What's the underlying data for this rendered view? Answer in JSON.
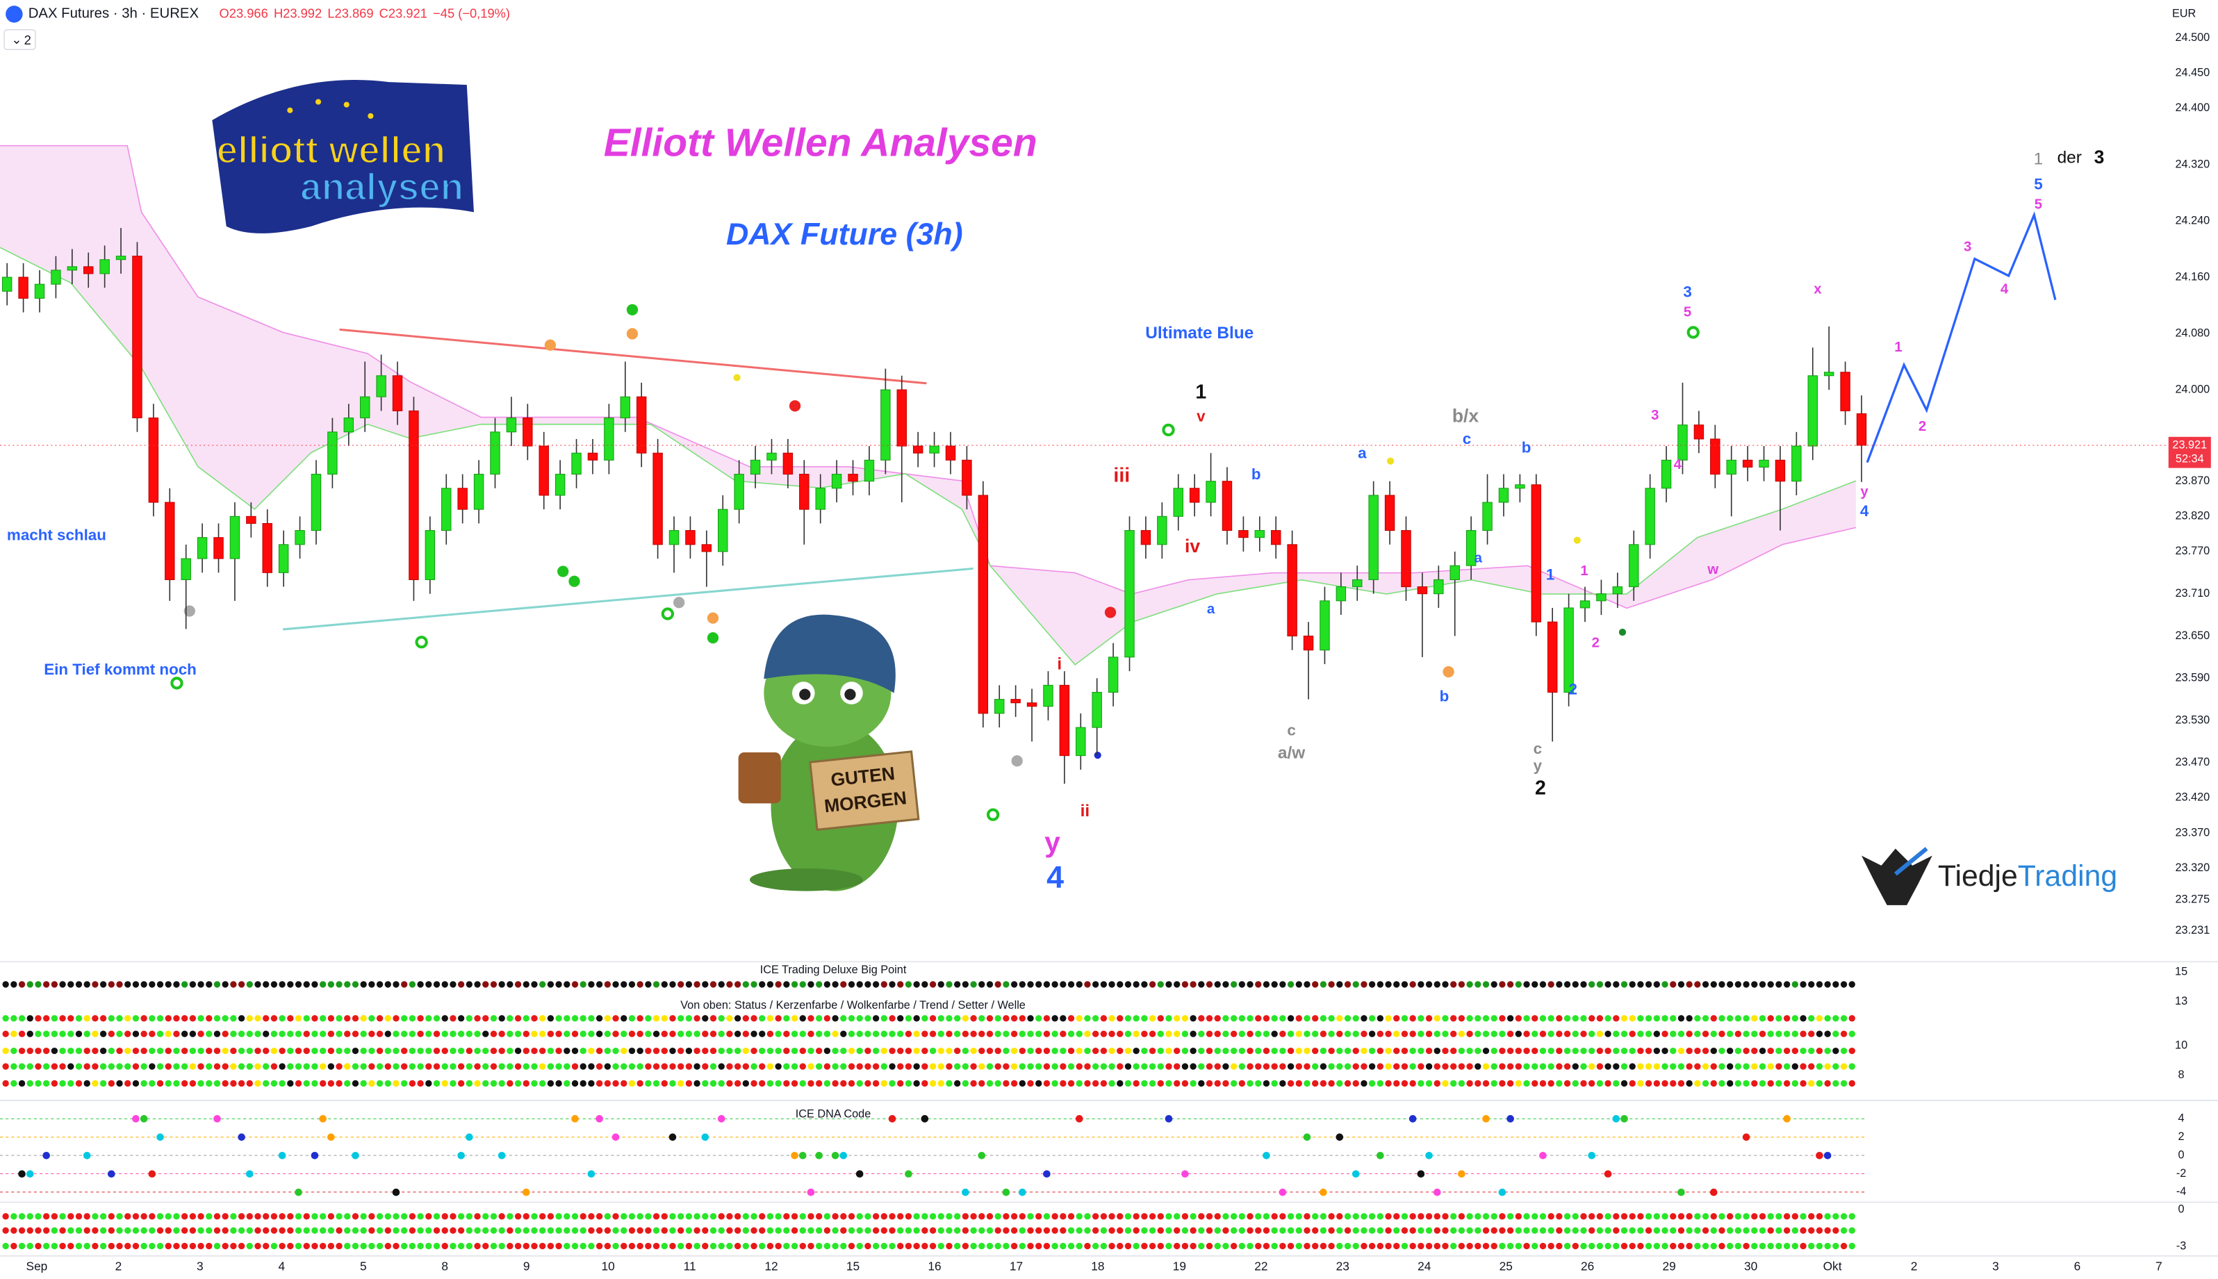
{
  "header": {
    "symbol": "DAX Futures · 3h · EUREX",
    "ohlc_text": [
      "O23.966",
      "H23.992",
      "L23.869",
      "C23.921",
      "−45 (−0,19%)"
    ],
    "layers": "2"
  },
  "chart_data": {
    "type": "candlestick",
    "currency": "EUR",
    "price_tag": "23.921",
    "countdown": "52:34",
    "up_color": "#22e022",
    "down_color": "#ff0a0a",
    "grid": false,
    "ylim": [
      23191,
      24554
    ],
    "yticks": [
      {
        "value": 24500,
        "label": "24.500"
      },
      {
        "value": 24450,
        "label": "24.450"
      },
      {
        "value": 24400,
        "label": "24.400"
      },
      {
        "value": 24320,
        "label": "24.320"
      },
      {
        "value": 24240,
        "label": "24.240"
      },
      {
        "value": 24160,
        "label": "24.160"
      },
      {
        "value": 24080,
        "label": "24.080"
      },
      {
        "value": 24000,
        "label": "24.000"
      },
      {
        "value": 23870,
        "label": "23.870"
      },
      {
        "value": 23820,
        "label": "23.820"
      },
      {
        "value": 23770,
        "label": "23.770"
      },
      {
        "value": 23710,
        "label": "23.710"
      },
      {
        "value": 23650,
        "label": "23.650"
      },
      {
        "value": 23590,
        "label": "23.590"
      },
      {
        "value": 23530,
        "label": "23.530"
      },
      {
        "value": 23470,
        "label": "23.470"
      },
      {
        "value": 23420,
        "label": "23.420"
      },
      {
        "value": 23370,
        "label": "23.370"
      },
      {
        "value": 23320,
        "label": "23.320"
      },
      {
        "value": 23275,
        "label": "23.275"
      },
      {
        "value": 23231,
        "label": "23.231"
      }
    ],
    "x_labels": [
      "Sep",
      "2",
      "3",
      "4",
      "5",
      "8",
      "9",
      "10",
      "11",
      "12",
      "15",
      "16",
      "17",
      "18",
      "19",
      "22",
      "23",
      "24",
      "25",
      "26",
      "29",
      "30",
      "Okt",
      "2",
      "3",
      "6",
      "7"
    ],
    "ohlc": [
      [
        24140,
        24180,
        24120,
        24160
      ],
      [
        24160,
        24180,
        24110,
        24130
      ],
      [
        24130,
        24170,
        24110,
        24150
      ],
      [
        24150,
        24190,
        24130,
        24170
      ],
      [
        24170,
        24200,
        24150,
        24175
      ],
      [
        24175,
        24195,
        24145,
        24165
      ],
      [
        24165,
        24205,
        24145,
        24185
      ],
      [
        24185,
        24230,
        24165,
        24190
      ],
      [
        24190,
        24210,
        23940,
        23960
      ],
      [
        23960,
        23980,
        23820,
        23840
      ],
      [
        23840,
        23860,
        23700,
        23730
      ],
      [
        23730,
        23780,
        23660,
        23760
      ],
      [
        23760,
        23810,
        23740,
        23790
      ],
      [
        23790,
        23810,
        23740,
        23760
      ],
      [
        23760,
        23840,
        23700,
        23820
      ],
      [
        23820,
        23840,
        23790,
        23810
      ],
      [
        23810,
        23830,
        23720,
        23740
      ],
      [
        23740,
        23800,
        23720,
        23780
      ],
      [
        23780,
        23820,
        23760,
        23800
      ],
      [
        23800,
        23900,
        23780,
        23880
      ],
      [
        23880,
        23960,
        23860,
        23940
      ],
      [
        23940,
        23980,
        23920,
        23960
      ],
      [
        23960,
        24040,
        23940,
        23990
      ],
      [
        23990,
        24050,
        23970,
        24020
      ],
      [
        24020,
        24040,
        23950,
        23970
      ],
      [
        23970,
        23990,
        23700,
        23730
      ],
      [
        23730,
        23820,
        23710,
        23800
      ],
      [
        23800,
        23880,
        23780,
        23860
      ],
      [
        23860,
        23880,
        23810,
        23830
      ],
      [
        23830,
        23900,
        23810,
        23880
      ],
      [
        23880,
        23960,
        23860,
        23940
      ],
      [
        23940,
        23990,
        23920,
        23960
      ],
      [
        23960,
        23980,
        23900,
        23920
      ],
      [
        23920,
        23940,
        23830,
        23850
      ],
      [
        23850,
        23900,
        23830,
        23880
      ],
      [
        23880,
        23930,
        23860,
        23910
      ],
      [
        23910,
        23930,
        23880,
        23900
      ],
      [
        23900,
        23980,
        23880,
        23960
      ],
      [
        23960,
        24040,
        23940,
        23990
      ],
      [
        23990,
        24010,
        23890,
        23910
      ],
      [
        23910,
        23930,
        23760,
        23780
      ],
      [
        23780,
        23820,
        23740,
        23800
      ],
      [
        23800,
        23820,
        23760,
        23780
      ],
      [
        23780,
        23800,
        23720,
        23770
      ],
      [
        23770,
        23850,
        23750,
        23830
      ],
      [
        23830,
        23900,
        23810,
        23880
      ],
      [
        23880,
        23920,
        23860,
        23900
      ],
      [
        23900,
        23930,
        23880,
        23910
      ],
      [
        23910,
        23930,
        23860,
        23880
      ],
      [
        23880,
        23900,
        23780,
        23830
      ],
      [
        23830,
        23880,
        23810,
        23860
      ],
      [
        23860,
        23900,
        23840,
        23880
      ],
      [
        23880,
        23900,
        23850,
        23870
      ],
      [
        23870,
        23920,
        23850,
        23900
      ],
      [
        23900,
        24030,
        23880,
        24000
      ],
      [
        24000,
        24020,
        23840,
        23920
      ],
      [
        23920,
        23940,
        23890,
        23910
      ],
      [
        23910,
        23940,
        23890,
        23920
      ],
      [
        23920,
        23940,
        23880,
        23900
      ],
      [
        23900,
        23920,
        23830,
        23850
      ],
      [
        23850,
        23870,
        23520,
        23540
      ],
      [
        23540,
        23580,
        23520,
        23560
      ],
      [
        23560,
        23580,
        23535,
        23555
      ],
      [
        23555,
        23575,
        23500,
        23550
      ],
      [
        23550,
        23600,
        23530,
        23580
      ],
      [
        23580,
        23600,
        23440,
        23480
      ],
      [
        23480,
        23540,
        23460,
        23520
      ],
      [
        23520,
        23590,
        23480,
        23570
      ],
      [
        23570,
        23640,
        23550,
        23620
      ],
      [
        23620,
        23820,
        23600,
        23800
      ],
      [
        23800,
        23820,
        23760,
        23780
      ],
      [
        23780,
        23840,
        23760,
        23820
      ],
      [
        23820,
        23880,
        23800,
        23860
      ],
      [
        23860,
        23880,
        23820,
        23840
      ],
      [
        23840,
        23910,
        23820,
        23870
      ],
      [
        23870,
        23890,
        23780,
        23800
      ],
      [
        23800,
        23820,
        23770,
        23790
      ],
      [
        23790,
        23820,
        23770,
        23800
      ],
      [
        23800,
        23820,
        23760,
        23780
      ],
      [
        23780,
        23800,
        23630,
        23650
      ],
      [
        23650,
        23670,
        23560,
        23630
      ],
      [
        23630,
        23720,
        23610,
        23700
      ],
      [
        23700,
        23740,
        23680,
        23720
      ],
      [
        23720,
        23750,
        23700,
        23730
      ],
      [
        23730,
        23870,
        23710,
        23850
      ],
      [
        23850,
        23870,
        23780,
        23800
      ],
      [
        23800,
        23820,
        23700,
        23720
      ],
      [
        23720,
        23740,
        23620,
        23710
      ],
      [
        23710,
        23750,
        23690,
        23730
      ],
      [
        23730,
        23770,
        23650,
        23750
      ],
      [
        23750,
        23820,
        23730,
        23800
      ],
      [
        23800,
        23880,
        23780,
        23840
      ],
      [
        23840,
        23880,
        23820,
        23860
      ],
      [
        23860,
        23880,
        23840,
        23865
      ],
      [
        23865,
        23880,
        23650,
        23670
      ],
      [
        23670,
        23690,
        23500,
        23570
      ],
      [
        23570,
        23710,
        23550,
        23690
      ],
      [
        23690,
        23720,
        23670,
        23700
      ],
      [
        23700,
        23730,
        23680,
        23710
      ],
      [
        23710,
        23740,
        23690,
        23720
      ],
      [
        23720,
        23800,
        23700,
        23780
      ],
      [
        23780,
        23880,
        23760,
        23860
      ],
      [
        23860,
        23920,
        23840,
        23900
      ],
      [
        23900,
        24010,
        23880,
        23950
      ],
      [
        23950,
        23970,
        23910,
        23930
      ],
      [
        23930,
        23950,
        23860,
        23880
      ],
      [
        23880,
        23920,
        23820,
        23900
      ],
      [
        23900,
        23920,
        23870,
        23890
      ],
      [
        23890,
        23920,
        23870,
        23900
      ],
      [
        23900,
        23920,
        23800,
        23870
      ],
      [
        23870,
        23940,
        23850,
        23920
      ],
      [
        23920,
        24060,
        23900,
        24020
      ],
      [
        24020,
        24090,
        24000,
        24025
      ],
      [
        24025,
        24040,
        23950,
        23970
      ],
      [
        23966,
        23992,
        23869,
        23921
      ]
    ],
    "annotations": [
      "Elliott Wellen Analysen",
      "DAX Future (3h)",
      "Ultimate Blue",
      "macht schlau",
      "Ein Tief kommt noch",
      "1",
      "v",
      "iii",
      "iv",
      "i",
      "ii",
      "y",
      "4",
      "a",
      "b",
      "c",
      "a/w",
      "a",
      "b/x",
      "c",
      "b",
      "a",
      "b",
      "c",
      "y",
      "2",
      "1",
      "2",
      "1",
      "2",
      "3",
      "5",
      "3",
      "4",
      "w",
      "x",
      "y",
      "4",
      "1",
      "2",
      "3",
      "4",
      "5",
      "5",
      "1",
      "der",
      "3"
    ],
    "indicators": [
      {
        "title": "ICE Trading Deluxe Big Point",
        "subtitle": "Von oben: Status / Kerzenfarbe / Wolkenfarbe / Trend / Setter / Welle",
        "ylim": [
          6.4,
          15.7
        ],
        "yticks": [
          15,
          13,
          10,
          8
        ]
      },
      {
        "title": "ICE DNA Code",
        "ylim": [
          -4.8,
          5.4
        ],
        "yticks": [
          4,
          2,
          0,
          -2,
          -4
        ]
      },
      {
        "ylim": [
          -3.9,
          0.5
        ],
        "yticks": [
          0,
          -3
        ]
      }
    ]
  },
  "logo": {
    "line1": "elliott wellen",
    "line2": "analysen"
  },
  "brand": {
    "part1": "Tiedje",
    "part2": "Trading"
  },
  "mascot_sign": [
    "GUTEN",
    "MORGEN"
  ]
}
